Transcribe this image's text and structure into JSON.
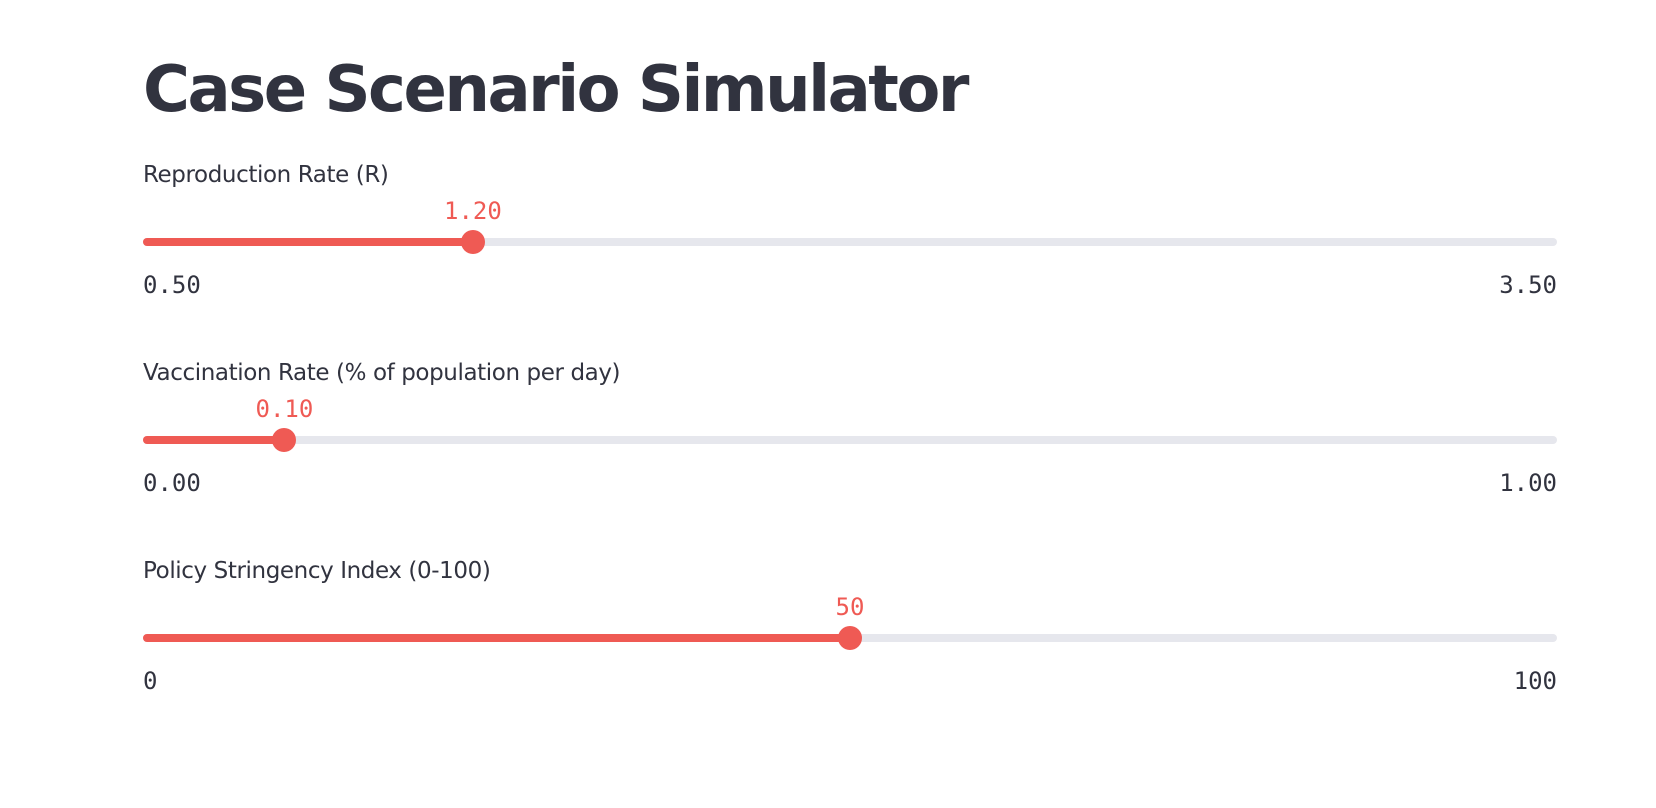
{
  "page": {
    "title": "Case Scenario Simulator"
  },
  "accent_color": "#ef5a54",
  "track_color": "#e6e7ed",
  "sliders": [
    {
      "label": "Reproduction Rate (R)",
      "value": 1.2,
      "value_label": "1.20",
      "min": 0.5,
      "max": 3.5,
      "min_label": "0.50",
      "max_label": "3.50"
    },
    {
      "label": "Vaccination Rate (% of population per day)",
      "value": 0.1,
      "value_label": "0.10",
      "min": 0.0,
      "max": 1.0,
      "min_label": "0.00",
      "max_label": "1.00"
    },
    {
      "label": "Policy Stringency Index (0-100)",
      "value": 50,
      "value_label": "50",
      "min": 0,
      "max": 100,
      "min_label": "0",
      "max_label": "100"
    }
  ]
}
